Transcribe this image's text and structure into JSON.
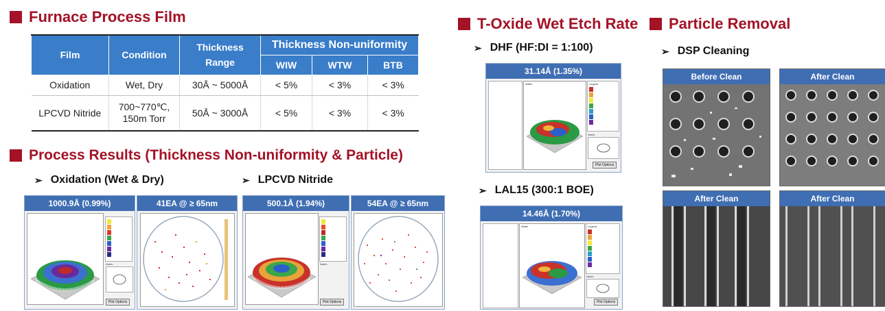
{
  "furnace": {
    "title": "Furnace Process Film",
    "table": {
      "headers": {
        "film": "Film",
        "condition": "Condition",
        "thickness_range": "Thickness Range",
        "nonuniformity": "Thickness Non-uniformity",
        "wiw": "WIW",
        "wtw": "WTW",
        "btb": "BTB"
      },
      "rows": [
        {
          "film": "Oxidation",
          "condition": "Wet, Dry",
          "range": "30Å ~ 5000Å",
          "wiw": "< 5%",
          "wtw": "< 3%",
          "btb": "< 3%"
        },
        {
          "film": "LPCVD Nitride",
          "condition_line1": "700~770℃,",
          "condition_line2": "150m Torr",
          "range": "50Å ~ 3000Å",
          "wiw": "< 5%",
          "wtw": "< 3%",
          "btb": "< 3%"
        }
      ]
    }
  },
  "process_results": {
    "title": "Process Results (Thickness Non-uniformity & Particle)",
    "oxidation": {
      "label": "Oxidation (Wet & Dry)",
      "thickness_title": "1000.9Å (0.99%)",
      "particle_title": "41EA @ ≥ 65nm",
      "button": "Plot Options",
      "notch": "Notch"
    },
    "nitride": {
      "label": "LPCVD Nitride",
      "thickness_title": "500.1Å (1.94%)",
      "particle_title": "54EA @ ≥ 65nm",
      "button": "Plot Options",
      "notch": "Notch"
    }
  },
  "toxide": {
    "title": "T-Oxide Wet Etch Rate",
    "dhf": {
      "label": "DHF (HF:DI = 1:100)",
      "title": "31.14Å (1.35%)",
      "button": "Plot Options",
      "legend": "Legend",
      "wafer": "Wafer",
      "notch": "Notch"
    },
    "lal": {
      "label": "LAL15 (300:1 BOE)",
      "title": "14.46Å (1.70%)",
      "button": "Plot Options",
      "legend": "Legend",
      "wafer": "Wafer",
      "notch": "Notch"
    }
  },
  "particle": {
    "title": "Particle Removal",
    "label": "DSP Cleaning",
    "images": {
      "before1": "Before Clean",
      "after1": "After Clean",
      "after2": "After Clean",
      "after3": "After Clean"
    }
  },
  "colors": {
    "accent": "#a31226",
    "header_blue": "#3a7dc9",
    "panel_bar": "#3f6eb3"
  }
}
